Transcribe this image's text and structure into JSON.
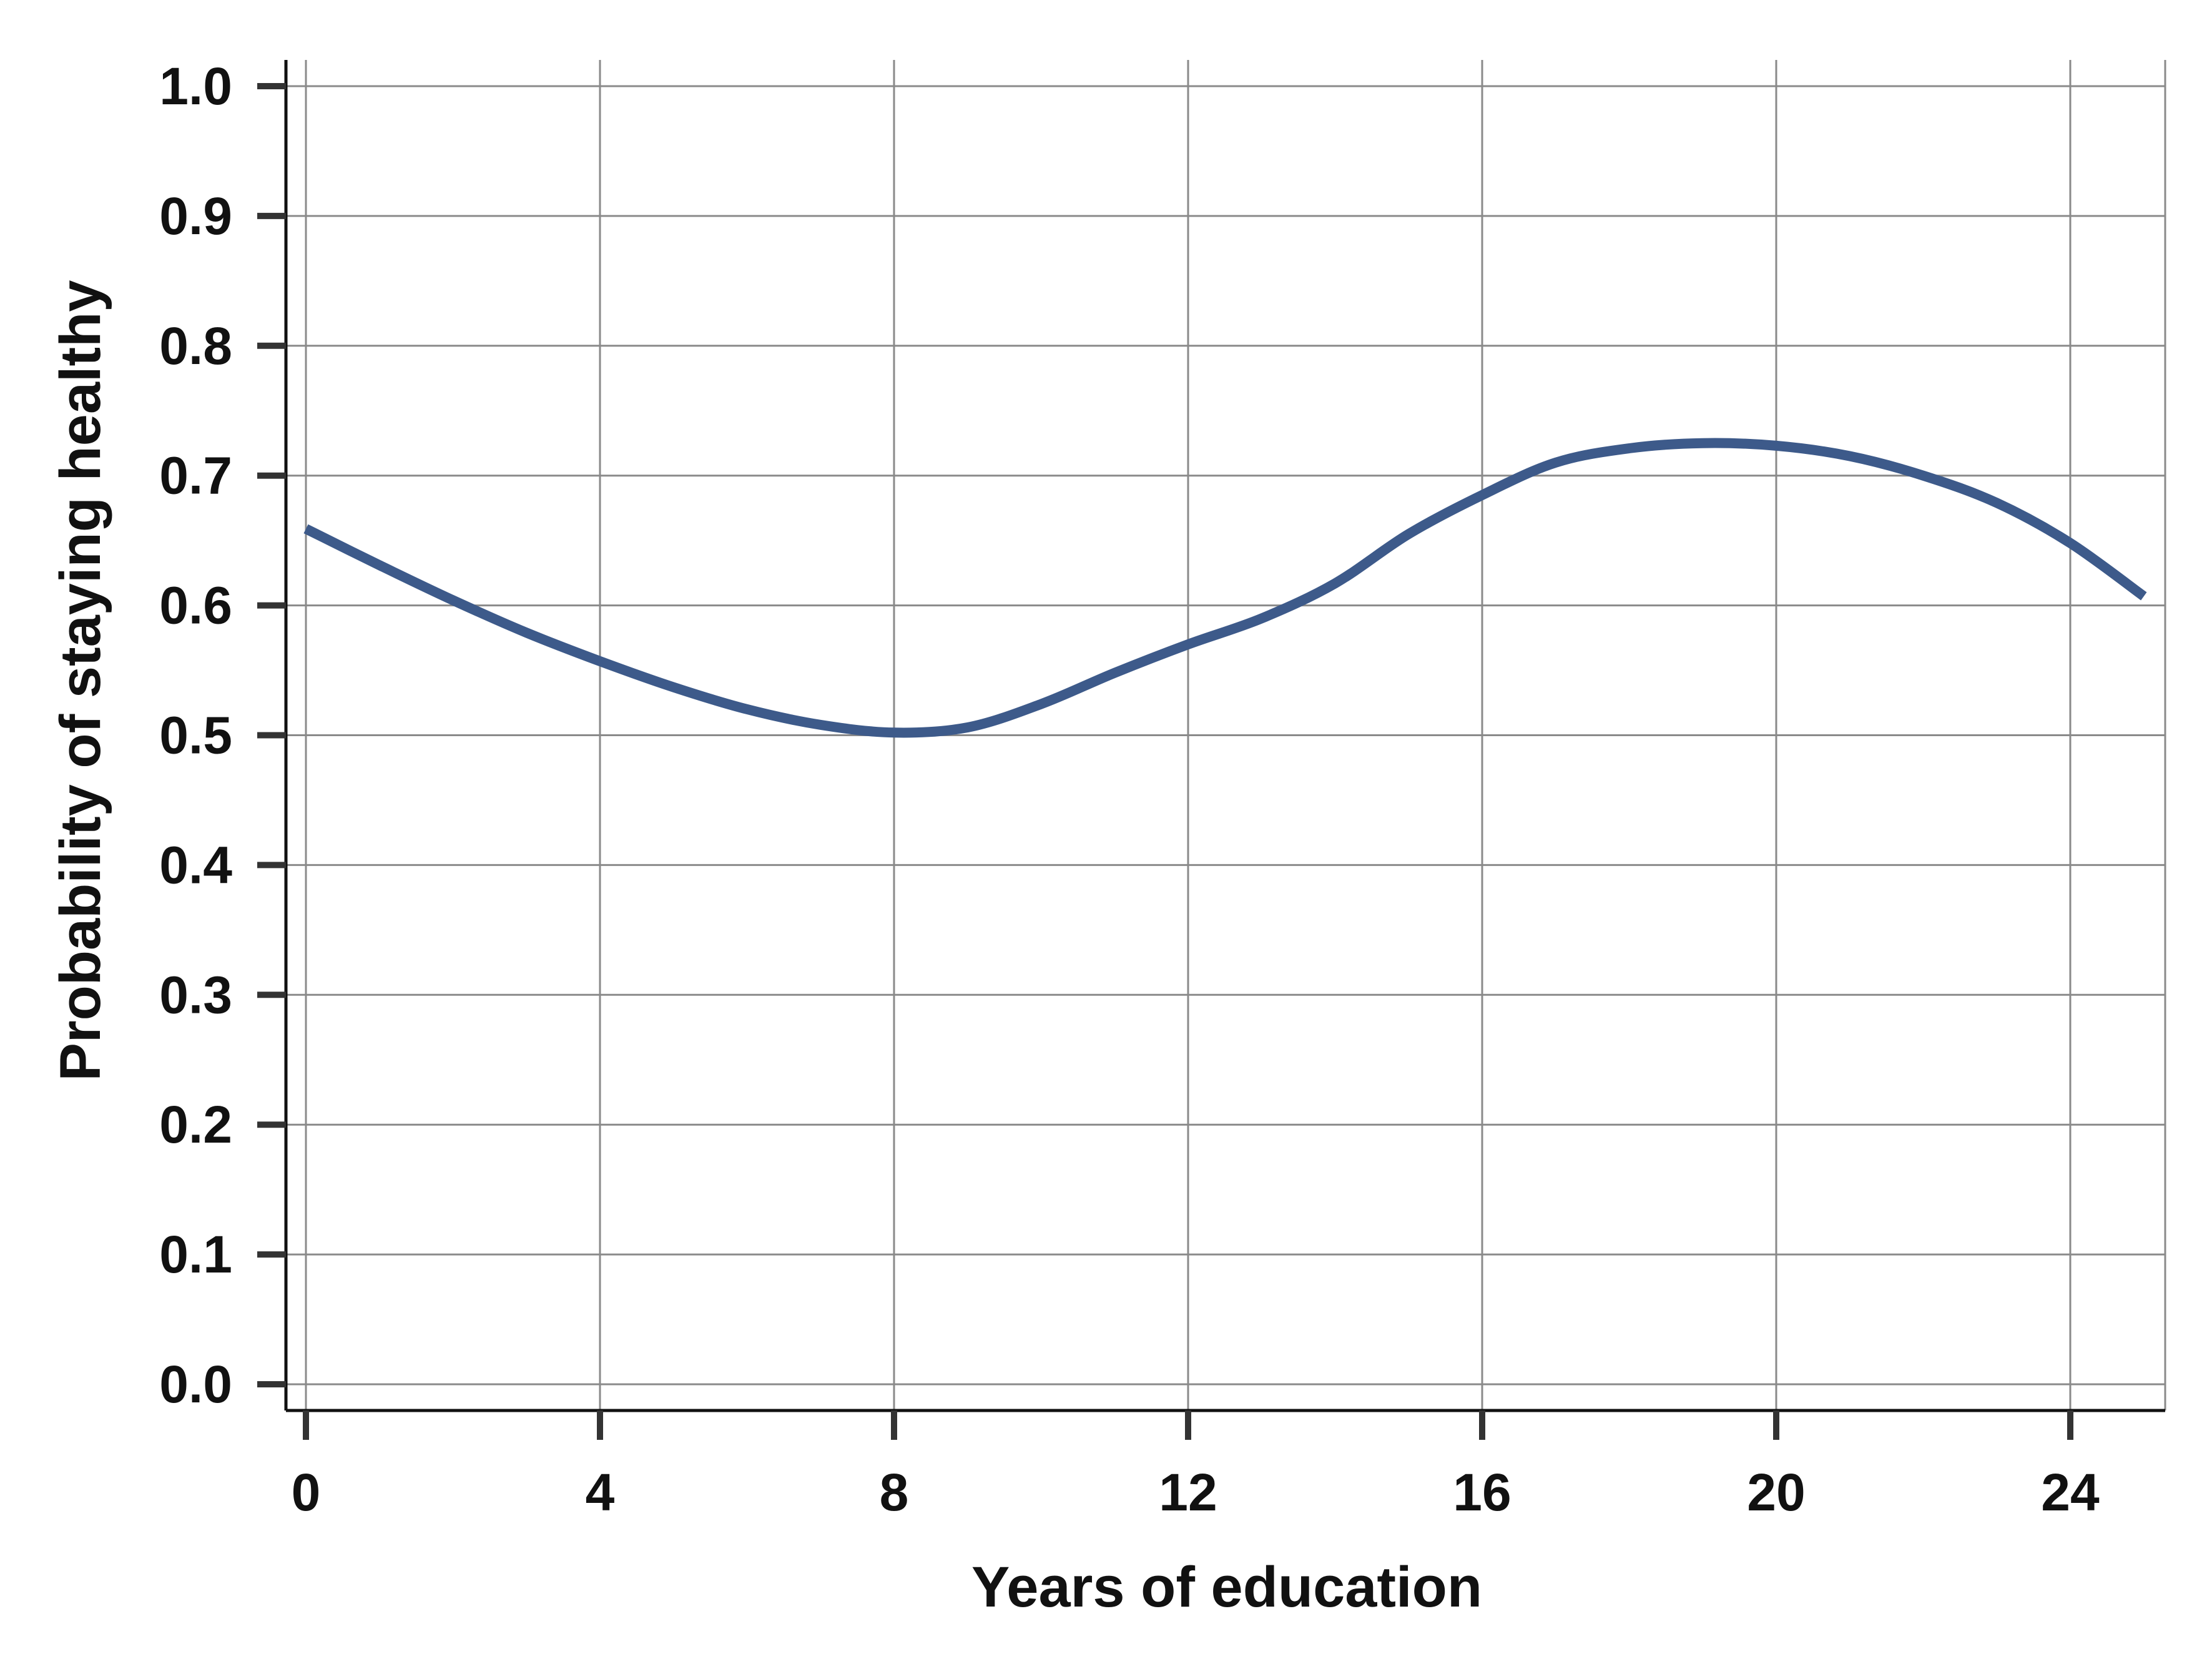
{
  "chart_data": {
    "type": "line",
    "title": "",
    "xlabel": "Years of education",
    "ylabel": "Probability of staying healthy",
    "xlim": [
      0,
      25
    ],
    "ylim": [
      0,
      1
    ],
    "x_ticks": [
      0,
      4,
      8,
      12,
      16,
      20,
      24
    ],
    "y_ticks": [
      0,
      0.1,
      0.2,
      0.3,
      0.4,
      0.5,
      0.6,
      0.7,
      0.8,
      0.9,
      1.0
    ],
    "x_tick_labels": [
      "0",
      "4",
      "8",
      "12",
      "16",
      "20",
      "24"
    ],
    "y_tick_labels": [
      "0.0",
      "0.1",
      "0.2",
      "0.3",
      "0.4",
      "0.5",
      "0.6",
      "0.7",
      "0.8",
      "0.9",
      "1.0"
    ],
    "grid": true,
    "legend": "none",
    "series": [
      {
        "color": "#3d5a8a",
        "x": [
          0,
          1,
          2,
          3,
          4,
          5,
          6,
          7,
          8,
          9,
          10,
          11,
          12,
          13,
          14,
          15,
          16,
          17,
          18,
          19,
          20,
          21,
          22,
          23,
          24,
          25
        ],
        "y": [
          0.659,
          0.631,
          0.604,
          0.579,
          0.557,
          0.537,
          0.52,
          0.508,
          0.502,
          0.506,
          0.524,
          0.548,
          0.57,
          0.59,
          0.617,
          0.655,
          0.685,
          0.71,
          0.721,
          0.725,
          0.723,
          0.715,
          0.7,
          0.679,
          0.648,
          0.607
        ]
      }
    ]
  }
}
